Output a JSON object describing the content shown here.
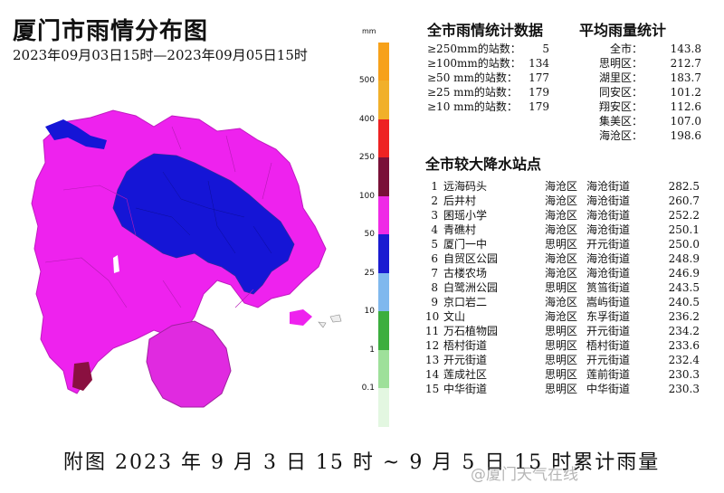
{
  "title": "厦门市雨情分布图",
  "subtitle": "2023年09月03日15时—2023年09月05日15时",
  "legend": {
    "unit": "mm",
    "ticks": [
      "500",
      "400",
      "250",
      "100",
      "50",
      "25",
      "10",
      "1",
      "0.1"
    ],
    "colors": [
      "#f1b02a",
      "#ee2222",
      "#7a1038",
      "#ef2ae6",
      "#1a1bd1",
      "#7fb8ee",
      "#3cae3e",
      "#9ee09a",
      "#e3f7e1"
    ],
    "overflow_color": "#f7a11a"
  },
  "stats": {
    "heading": "全市雨情统计数据",
    "rows": [
      {
        "label": "≥250mm的站数：",
        "value": "5"
      },
      {
        "label": "≥100mm的站数：",
        "value": "134"
      },
      {
        "label": "≥50 mm的站数：",
        "value": "177"
      },
      {
        "label": "≥25 mm的站数：",
        "value": "179"
      },
      {
        "label": "≥10 mm的站数：",
        "value": "179"
      }
    ]
  },
  "avg": {
    "heading": "平均雨量统计",
    "rows": [
      {
        "label": "全市：",
        "value": "143.8"
      },
      {
        "label": "思明区：",
        "value": "212.7"
      },
      {
        "label": "湖里区：",
        "value": "183.7"
      },
      {
        "label": "同安区：",
        "value": "101.2"
      },
      {
        "label": "翔安区：",
        "value": "112.6"
      },
      {
        "label": "集美区：",
        "value": "107.0"
      },
      {
        "label": "海沧区：",
        "value": "198.6"
      }
    ]
  },
  "stations": {
    "heading": "全市较大降水站点",
    "rows": [
      {
        "rank": "1",
        "name": "远海码头",
        "district": "海沧区",
        "street": "海沧街道",
        "value": "282.5"
      },
      {
        "rank": "2",
        "name": "后井村",
        "district": "海沧区",
        "street": "海沧街道",
        "value": "260.7"
      },
      {
        "rank": "3",
        "name": "囷瑶小学",
        "district": "海沧区",
        "street": "海沧街道",
        "value": "252.2"
      },
      {
        "rank": "4",
        "name": "青礁村",
        "district": "海沧区",
        "street": "海沧街道",
        "value": "250.1"
      },
      {
        "rank": "5",
        "name": "厦门一中",
        "district": "思明区",
        "street": "开元街道",
        "value": "250.0"
      },
      {
        "rank": "6",
        "name": "自贸区公园",
        "district": "海沧区",
        "street": "海沧街道",
        "value": "248.9"
      },
      {
        "rank": "7",
        "name": "古楼农场",
        "district": "海沧区",
        "street": "海沧街道",
        "value": "246.9"
      },
      {
        "rank": "8",
        "name": "白鹭洲公园",
        "district": "思明区",
        "street": "筼筜街道",
        "value": "243.5"
      },
      {
        "rank": "9",
        "name": "京口岩二",
        "district": "海沧区",
        "street": "嵩屿街道",
        "value": "240.5"
      },
      {
        "rank": "10",
        "name": "文山",
        "district": "海沧区",
        "street": "东孚街道",
        "value": "236.2"
      },
      {
        "rank": "11",
        "name": "万石植物园",
        "district": "思明区",
        "street": "开元街道",
        "value": "234.2"
      },
      {
        "rank": "12",
        "name": "梧村街道",
        "district": "思明区",
        "street": "梧村街道",
        "value": "233.6"
      },
      {
        "rank": "13",
        "name": "开元街道",
        "district": "思明区",
        "street": "开元街道",
        "value": "232.4"
      },
      {
        "rank": "14",
        "name": "莲成社区",
        "district": "思明区",
        "street": "莲前街道",
        "value": "230.3"
      },
      {
        "rank": "15",
        "name": "中华街道",
        "district": "思明区",
        "street": "中华街道",
        "value": "230.3"
      }
    ]
  },
  "caption": "附图  2023 年 9 月 3 日 15 时 ~ 9 月 5 日 15 时累计雨量",
  "watermark": "@厦门天气在线",
  "map_colors": {
    "magenta": "#ee22ee",
    "blue": "#1515d6",
    "maroon": "#8a1040",
    "border": "#a020a0"
  }
}
